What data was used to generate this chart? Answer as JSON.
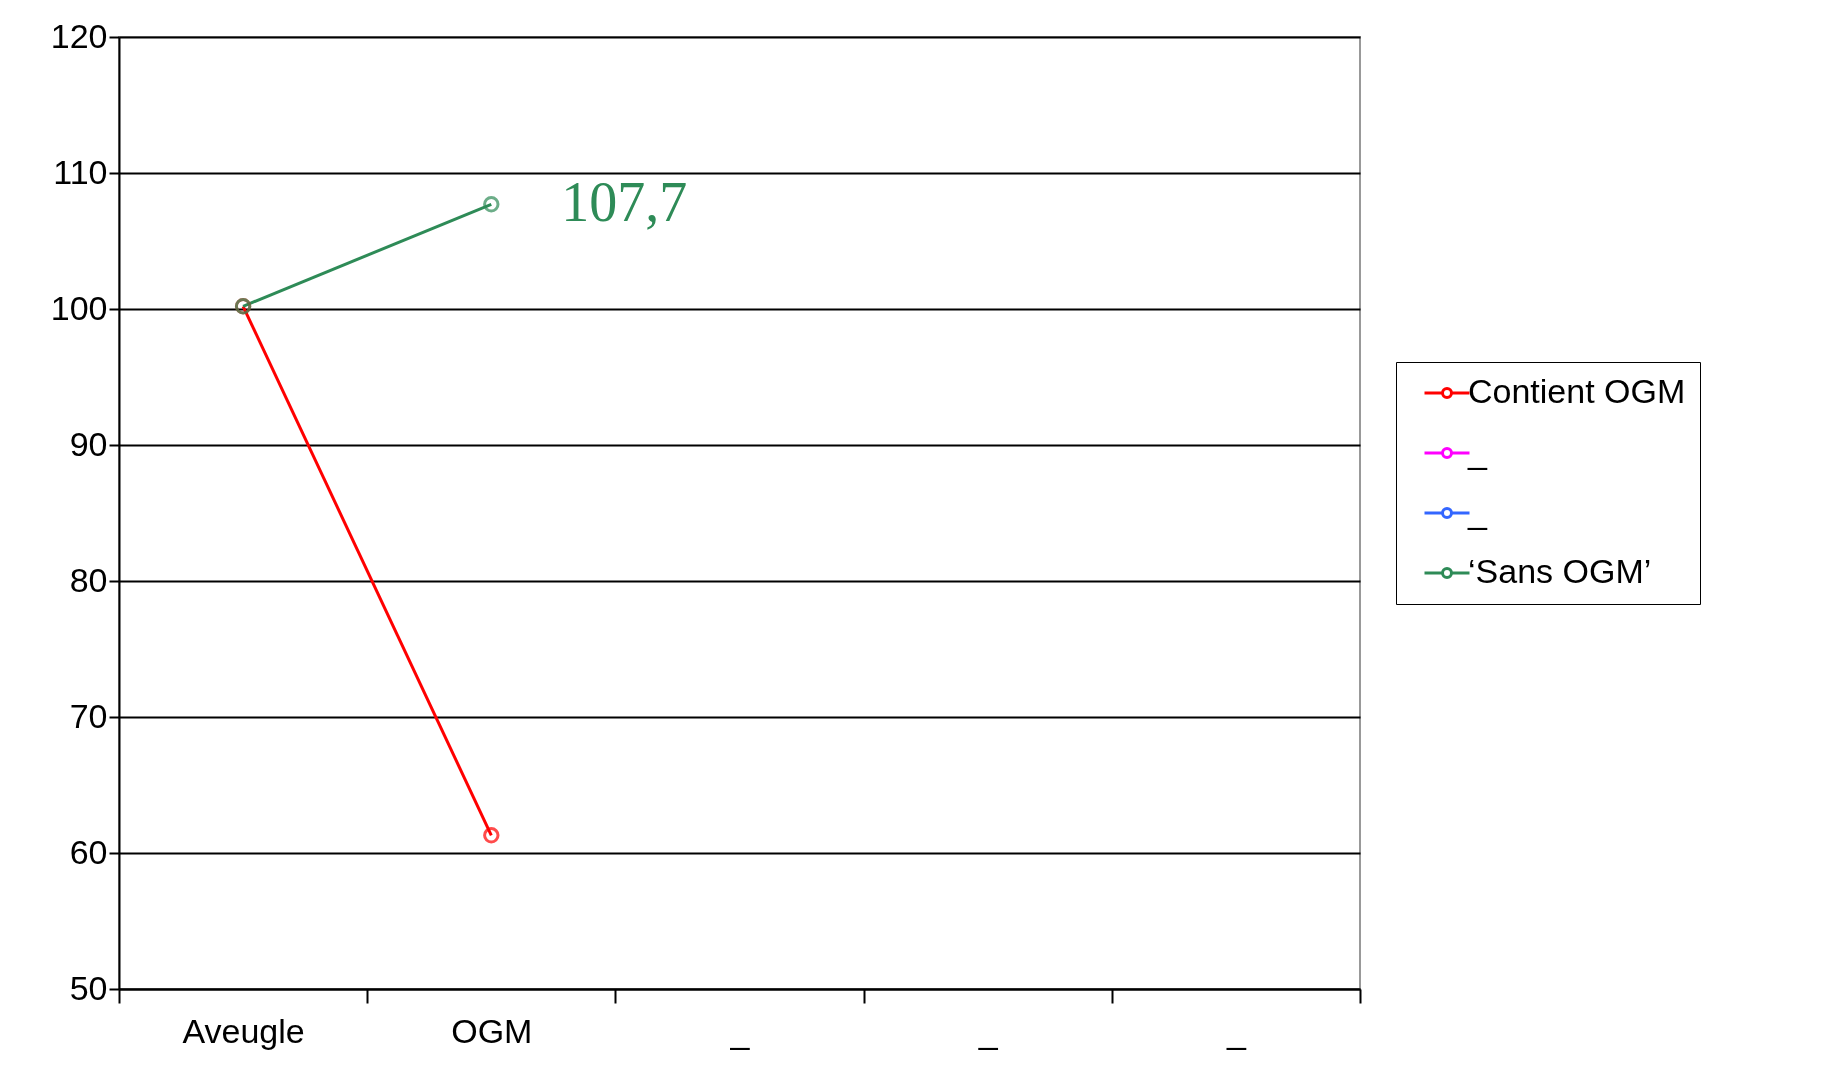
{
  "chart_data": {
    "type": "line",
    "categories": [
      "Aveugle",
      "OGM",
      "_",
      "_",
      "_"
    ],
    "series": [
      {
        "name": "Contient OGM",
        "color": "#ff0000",
        "values": [
          100.2,
          61.3,
          null,
          null,
          null
        ]
      },
      {
        "name": "_",
        "color": "#ff00ff",
        "values": [
          null,
          null,
          null,
          null,
          null
        ]
      },
      {
        "name": "_",
        "color": "#3366ff",
        "values": [
          null,
          null,
          null,
          null,
          null
        ]
      },
      {
        "name": "‘Sans OGM’",
        "color": "#2e8b57",
        "values": [
          100.2,
          107.7,
          null,
          null,
          null
        ]
      }
    ],
    "ylim": [
      50,
      120
    ],
    "yticks": [
      50,
      60,
      70,
      80,
      90,
      100,
      110,
      120
    ],
    "grid": "y",
    "legend": "right",
    "marker": "circle",
    "annotations": [
      {
        "text": "107,7",
        "x": "OGM",
        "y": 107.7
      }
    ]
  }
}
